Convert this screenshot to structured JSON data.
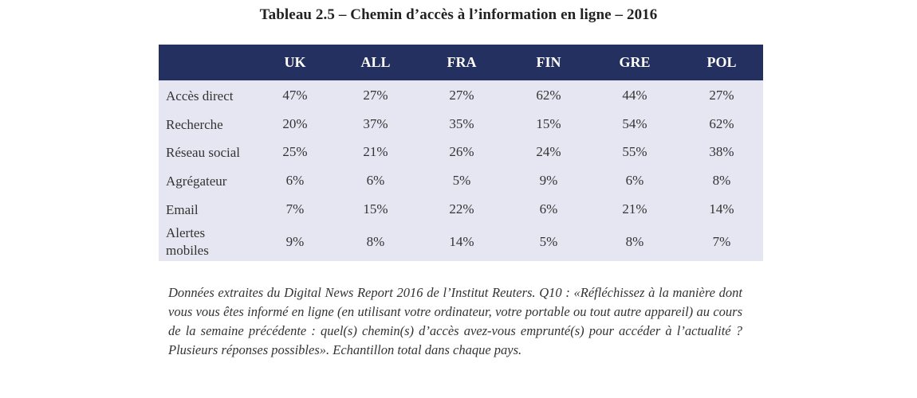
{
  "title": "Tableau 2.5 – Chemin d’accès à l’information en ligne – 2016",
  "table": {
    "columns": [
      "UK",
      "ALL",
      "FRA",
      "FIN",
      "GRE",
      "POL"
    ],
    "rows": [
      {
        "label": "Accès direct",
        "values": [
          "47%",
          "27%",
          "27%",
          "62%",
          "44%",
          "27%"
        ]
      },
      {
        "label": "Recherche",
        "values": [
          "20%",
          "37%",
          "35%",
          "15%",
          "54%",
          "62%"
        ]
      },
      {
        "label": "Réseau social",
        "values": [
          "25%",
          "21%",
          "26%",
          "24%",
          "55%",
          "38%"
        ]
      },
      {
        "label": "Agrégateur",
        "values": [
          "6%",
          "6%",
          "5%",
          "9%",
          "6%",
          "8%"
        ]
      },
      {
        "label": "Email",
        "values": [
          "7%",
          "15%",
          "22%",
          "6%",
          "21%",
          "14%"
        ]
      },
      {
        "label_lines": [
          "Alertes",
          "mobiles"
        ],
        "values": [
          "9%",
          "8%",
          "14%",
          "5%",
          "8%",
          "7%"
        ]
      }
    ]
  },
  "caption": "Données extraites du Digital News Report 2016 de l’Institut Reuters. Q10 : «Réfléchissez à la manière dont vous vous êtes informé en ligne (en utilisant votre ordinateur, votre portable ou tout autre appareil) au cours de la semaine précédente : quel(s) chemin(s) d’accès avez-vous emprunté(s) pour accéder à l’actualité ? Plusieurs réponses possibles». Echantillon total dans chaque pays.",
  "colors": {
    "header_bg": "#24305f",
    "body_bg": "#e6e6f2"
  }
}
